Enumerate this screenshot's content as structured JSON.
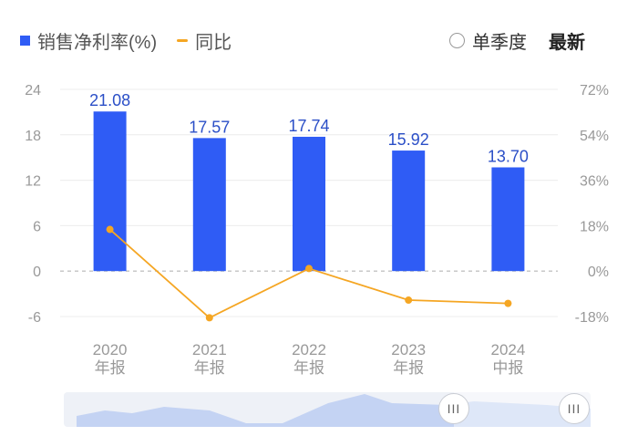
{
  "legend": {
    "bar_label": "销售净利率(%)",
    "line_label": "同比"
  },
  "toggles": {
    "quarter_label": "单季度",
    "latest_label": "最新"
  },
  "navigator": {
    "handle_glyph": "III"
  },
  "colors": {
    "bar": "#2f5cf5",
    "line": "#f5a623",
    "label": "#2b4fc7",
    "axis_text": "#999999"
  },
  "chart_data": {
    "type": "bar",
    "categories": [
      [
        "2020",
        "年报"
      ],
      [
        "2021",
        "年报"
      ],
      [
        "2022",
        "年报"
      ],
      [
        "2023",
        "年报"
      ],
      [
        "2024",
        "中报"
      ]
    ],
    "series": [
      {
        "name": "销售净利率(%)",
        "type": "bar",
        "axis": "left",
        "values": [
          21.08,
          17.57,
          17.74,
          15.92,
          13.7
        ],
        "labels": [
          "21.08",
          "17.57",
          "17.74",
          "15.92",
          "13.70"
        ]
      },
      {
        "name": "同比",
        "type": "line",
        "axis": "right",
        "values": [
          16.5,
          -18.5,
          1.0,
          -11.5,
          -12.8
        ]
      }
    ],
    "y_left": {
      "ylim": [
        -6,
        24
      ],
      "ticks": [
        "24",
        "18",
        "12",
        "6",
        "0",
        "-6"
      ]
    },
    "y_right": {
      "ylim": [
        -18,
        72
      ],
      "ticks": [
        "72%",
        "54%",
        "36%",
        "18%",
        "0%",
        "-18%"
      ]
    },
    "zero_line": "dashed"
  }
}
